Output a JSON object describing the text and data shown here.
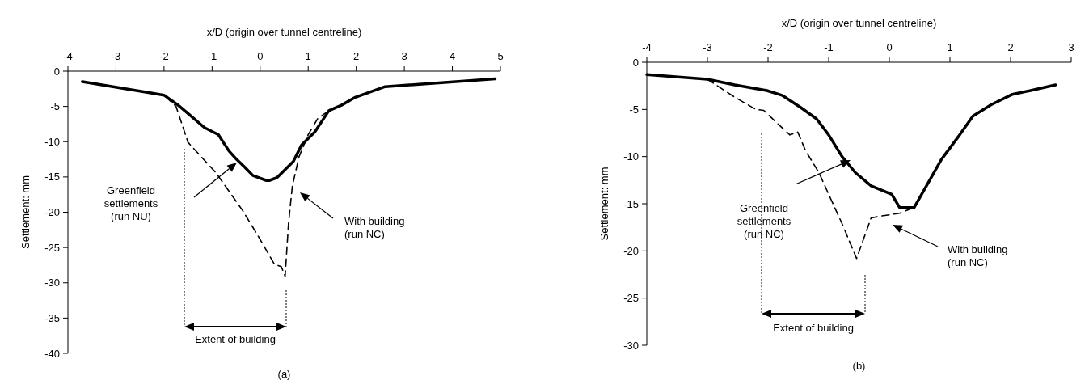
{
  "chart_data": [
    {
      "type": "line",
      "title": "(a)",
      "xlabel": "x/D (origin over tunnel centreline)",
      "ylabel": "Settlement: mm",
      "xlim": [
        -4,
        5
      ],
      "xticks": [
        -4,
        -3,
        -2,
        -1,
        0,
        1,
        2,
        3,
        4,
        5
      ],
      "ylim": [
        -40,
        0
      ],
      "yticks": [
        0,
        -5,
        -10,
        -15,
        -20,
        -25,
        -30,
        -35,
        -40
      ],
      "grid": false,
      "series": [
        {
          "color": "#000000",
          "line_style": "solid",
          "x": [
            -3.7,
            -2.27,
            -2.0,
            -1.71,
            -1.5,
            -1.16,
            -0.87,
            -0.65,
            -0.49,
            -0.32,
            -0.15,
            0.13,
            0.19,
            0.35,
            0.69,
            0.86,
            1.14,
            1.43,
            1.7,
            1.98,
            2.6,
            4.89
          ],
          "values": [
            -1.5,
            -3.1,
            -3.4,
            -4.8,
            -6.0,
            -8.0,
            -9.0,
            -11.3,
            -12.5,
            -13.6,
            -14.8,
            -15.5,
            -15.5,
            -15.1,
            -12.8,
            -10.5,
            -8.6,
            -5.6,
            -4.8,
            -3.7,
            -2.2,
            -1.1
          ]
        },
        {
          "color": "#000000",
          "line_style": "dashed",
          "x": [
            -3.7,
            -2.27,
            -2.0,
            -1.75,
            -1.5,
            -0.92,
            -0.37,
            -0.03,
            0.3,
            0.44,
            0.52,
            0.59,
            0.67,
            0.81,
            1.0,
            1.2,
            1.43,
            1.7,
            1.98,
            2.6,
            4.89
          ],
          "values": [
            -1.5,
            -3.1,
            -3.4,
            -5.0,
            -10.1,
            -14.4,
            -19.7,
            -23.5,
            -27.4,
            -27.7,
            -29.1,
            -21.6,
            -16.3,
            -12.1,
            -9.0,
            -6.7,
            -5.6,
            -4.8,
            -3.7,
            -2.2,
            -1.1
          ]
        }
      ],
      "annotations": [
        "Greenfield settlements (run NU)",
        "With building (run NC)",
        "Extent of building"
      ]
    },
    {
      "type": "line",
      "title": "(b)",
      "xlabel": "x/D (origin over tunnel centreline)",
      "ylabel": "Settlement: mm",
      "xlim": [
        -4,
        3
      ],
      "xticks": [
        -4,
        -3,
        -2,
        -1,
        0,
        1,
        2,
        3
      ],
      "ylim": [
        -30,
        0
      ],
      "yticks": [
        0,
        -5,
        -10,
        -15,
        -20,
        -25,
        -30
      ],
      "grid": false,
      "series": [
        {
          "color": "#000000",
          "line_style": "solid",
          "x": [
            -4.0,
            -3.0,
            -2.55,
            -2.02,
            -1.77,
            -1.46,
            -1.2,
            -1.0,
            -0.78,
            -0.56,
            -0.3,
            0.04,
            0.17,
            0.41,
            0.86,
            1.16,
            1.38,
            1.68,
            2.03,
            2.33,
            2.74
          ],
          "values": [
            -1.3,
            -1.8,
            -2.4,
            -3.0,
            -3.5,
            -4.8,
            -6.0,
            -7.7,
            -10.0,
            -11.7,
            -13.1,
            -14.0,
            -15.4,
            -15.4,
            -10.3,
            -7.7,
            -5.7,
            -4.5,
            -3.4,
            -3.0,
            -2.4
          ]
        },
        {
          "color": "#000000",
          "line_style": "dashed",
          "x": [
            -4.0,
            -3.0,
            -2.55,
            -2.2,
            -2.07,
            -1.81,
            -1.64,
            -1.51,
            -1.38,
            -1.16,
            -1.0,
            -0.78,
            -0.54,
            -0.3,
            -0.13,
            0.17,
            0.41,
            0.86,
            1.16,
            1.38,
            1.68,
            2.03,
            2.33,
            2.74
          ],
          "values": [
            -1.3,
            -1.8,
            -3.7,
            -5.0,
            -5.1,
            -6.7,
            -7.7,
            -7.4,
            -9.4,
            -11.7,
            -14.0,
            -17.1,
            -20.8,
            -16.5,
            -16.3,
            -16.0,
            -15.4,
            -10.3,
            -7.7,
            -5.7,
            -4.5,
            -3.4,
            -3.0,
            -2.4
          ]
        }
      ],
      "annotations": [
        "Greenfield settlements (run NC)",
        "With building (run NC)",
        "Extent of building"
      ]
    }
  ]
}
